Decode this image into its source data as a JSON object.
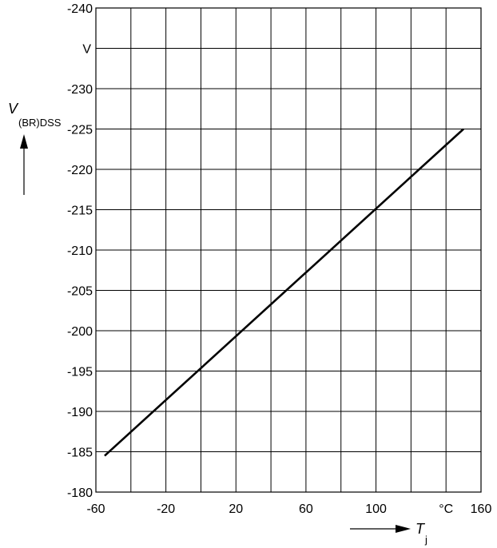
{
  "chart_data": {
    "type": "line",
    "title": "",
    "ylabel": {
      "main": "V",
      "subscript": "(BR)DSS"
    },
    "xlabel": {
      "main": "T",
      "subscript": "j"
    },
    "x_unit_label": "°C",
    "y_unit_label": "V",
    "xlim": [
      -60,
      160
    ],
    "ylim": [
      -180,
      -240
    ],
    "x_ticks": [
      {
        "value": -60,
        "label": "-60"
      },
      {
        "value": -20,
        "label": "-20"
      },
      {
        "value": 20,
        "label": "20"
      },
      {
        "value": 60,
        "label": "60"
      },
      {
        "value": 100,
        "label": "100"
      },
      {
        "value": 160,
        "label": "160"
      }
    ],
    "y_ticks": [
      {
        "value": -240,
        "label": "-240"
      },
      {
        "value": -230,
        "label": "-230"
      },
      {
        "value": -225,
        "label": "-225"
      },
      {
        "value": -220,
        "label": "-220"
      },
      {
        "value": -215,
        "label": "-215"
      },
      {
        "value": -210,
        "label": "-210"
      },
      {
        "value": -205,
        "label": "-205"
      },
      {
        "value": -200,
        "label": "-200"
      },
      {
        "value": -195,
        "label": "-195"
      },
      {
        "value": -190,
        "label": "-190"
      },
      {
        "value": -185,
        "label": "-185"
      },
      {
        "value": -180,
        "label": "-180"
      }
    ],
    "grid": true,
    "series": [
      {
        "x": [
          -55,
          150
        ],
        "y": [
          -184.5,
          -225.0
        ],
        "color": "#000000"
      }
    ]
  }
}
